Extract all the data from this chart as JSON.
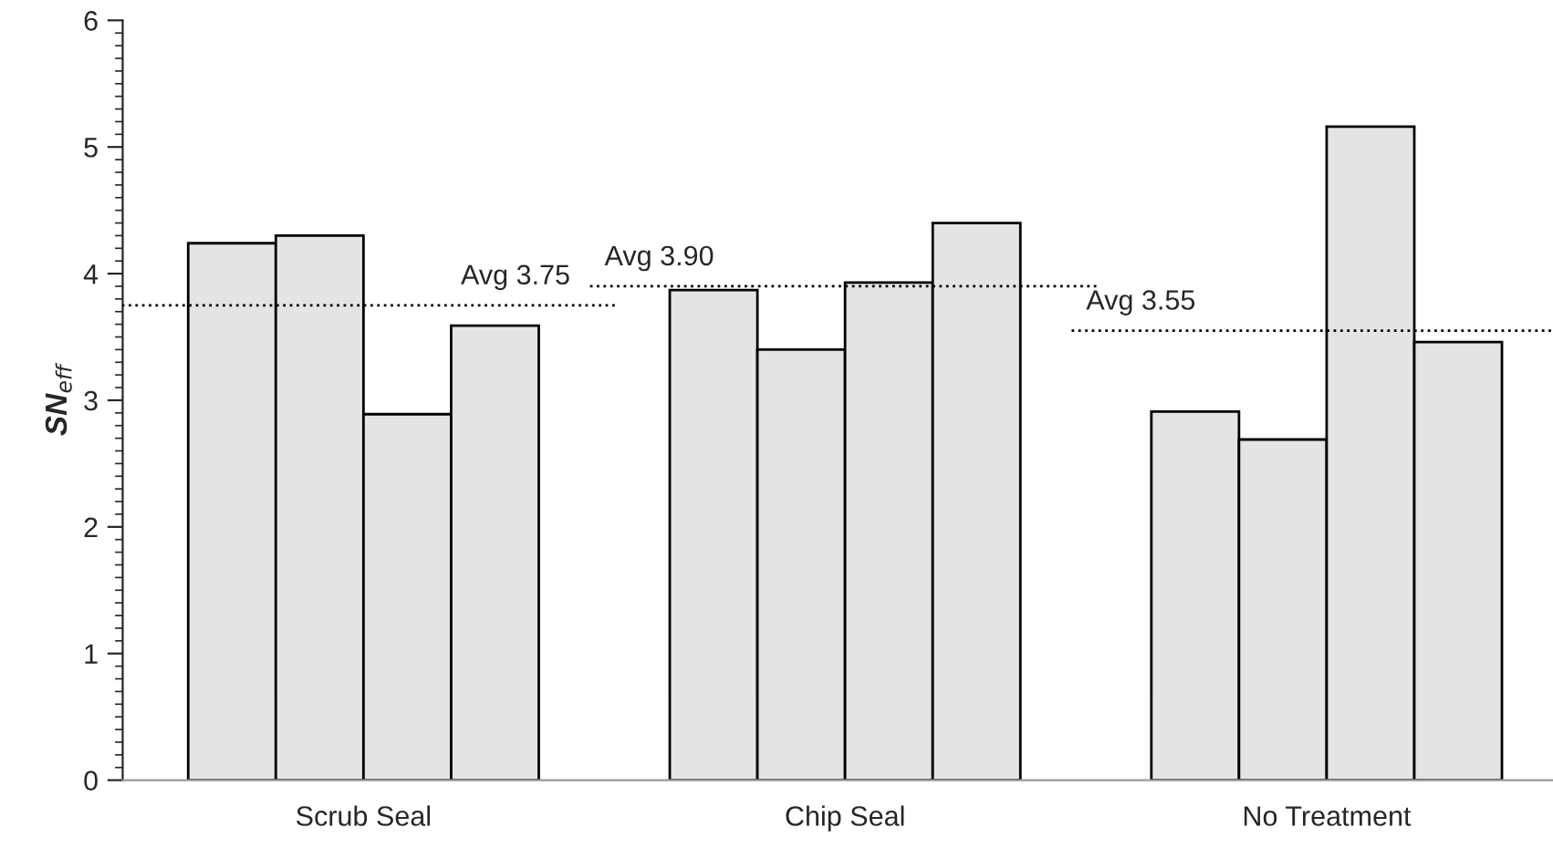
{
  "chart_data": {
    "type": "bar",
    "ylabel": "SN$_{eff}$",
    "categories": [
      "Scrub Seal",
      "Chip Seal",
      "No Treatment"
    ],
    "series": [
      {
        "color": "#e4e4e4",
        "values": [
          4.24,
          3.87,
          2.91
        ]
      },
      {
        "color": "#e4e4e4",
        "values": [
          4.3,
          3.4,
          2.69
        ]
      },
      {
        "color": "#e4e4e4",
        "values": [
          2.89,
          3.93,
          5.16
        ]
      },
      {
        "color": "#e4e4e4",
        "values": [
          3.59,
          4.4,
          3.46
        ]
      }
    ],
    "ylim": [
      0,
      6
    ],
    "yticks": [
      0,
      1,
      2,
      3,
      4,
      5,
      6
    ],
    "grid": false,
    "legend": false,
    "ref_lines": [
      {
        "axis": "y",
        "value": 3.75,
        "label": "Avg 3.75",
        "line_style": "dotted"
      },
      {
        "axis": "y",
        "value": 3.9,
        "label": "Avg 3.90",
        "line_style": "dotted"
      },
      {
        "axis": "y",
        "value": 3.55,
        "label": "Avg 3.55",
        "line_style": "dotted"
      }
    ]
  }
}
